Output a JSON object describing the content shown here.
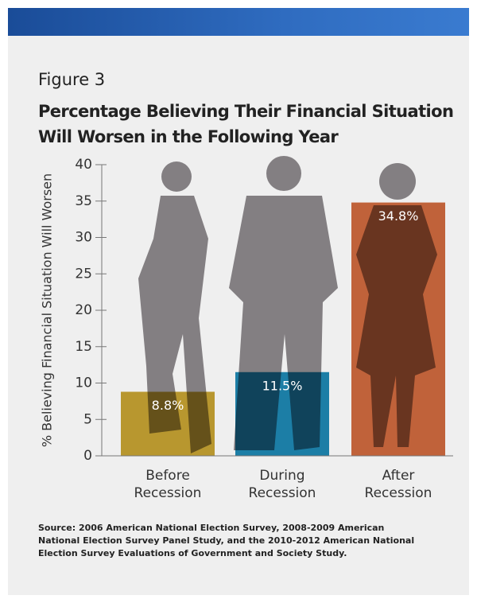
{
  "chart_data": {
    "type": "bar",
    "figure_label": "Figure 3",
    "title": [
      "Percentage Believing Their Financial Situation",
      "Will Worsen in the Following Year"
    ],
    "y_label": "% Believing  Financial Situation Will Worsen",
    "categories": [
      "Before Recession",
      "During Recession",
      "After Recession"
    ],
    "values": [
      8.8,
      11.5,
      34.8
    ],
    "value_labels": [
      "8.8%",
      "11.5%",
      "34.8%"
    ],
    "colors": [
      "#b8972f",
      "#1c7ea6",
      "#c0623a"
    ],
    "ylim": [
      0,
      40
    ],
    "yticks": [
      0,
      5,
      10,
      15,
      20,
      25,
      30,
      35,
      40
    ],
    "source": [
      "Source: 2006 American National Election Survey, 2008-2009 American",
      "National Election Survey Panel Study, and the 2010-2012 American National",
      "Election Survey Evaluations of Government and Society Study."
    ]
  }
}
